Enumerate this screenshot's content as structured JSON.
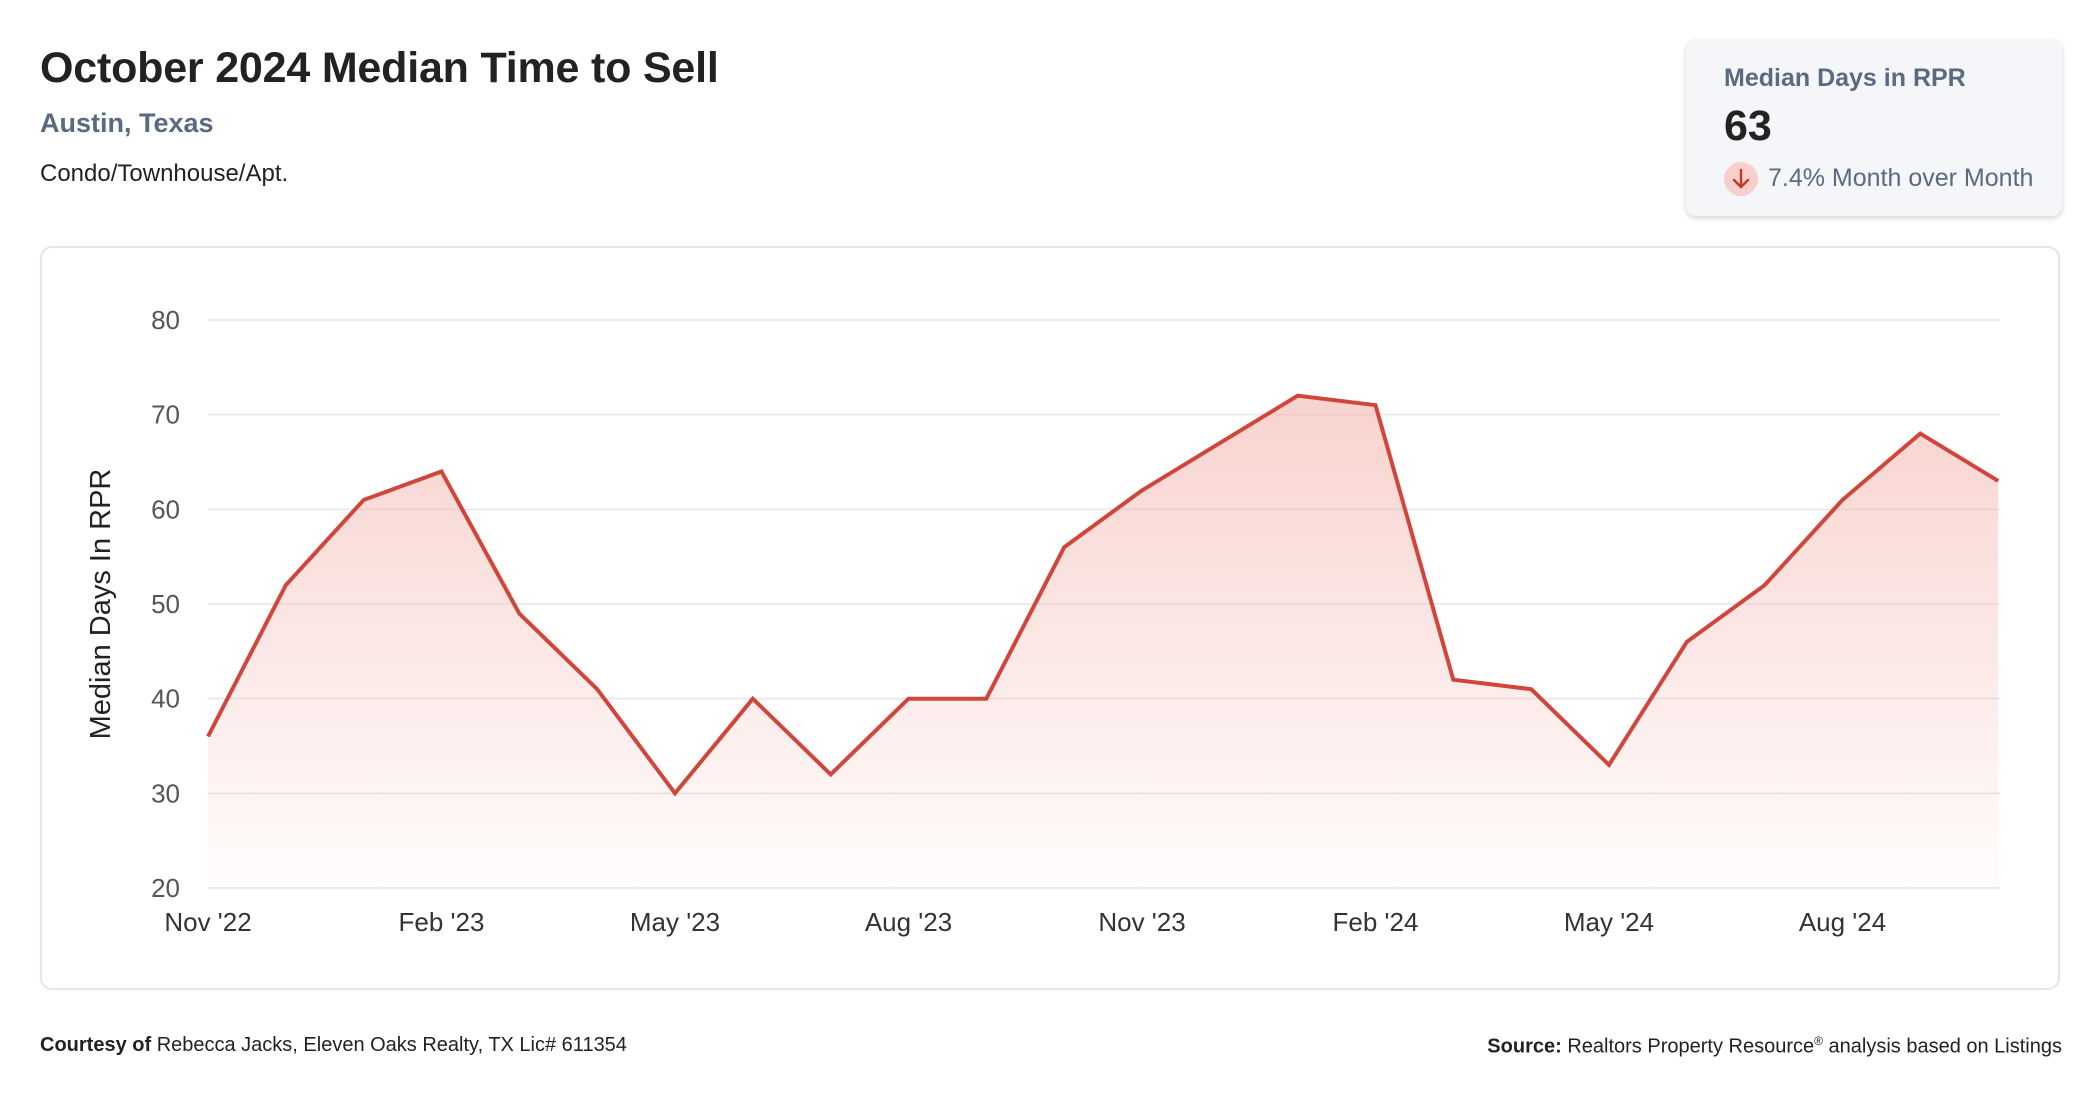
{
  "header": {
    "title": "October 2024 Median Time to Sell",
    "location": "Austin, Texas",
    "property_type": "Condo/Townhouse/Apt."
  },
  "stat_card": {
    "label": "Median Days in RPR",
    "value": "63",
    "change_text": "7.4% Month over Month",
    "change_icon": "arrow-down-icon",
    "change_color": "#d1463b"
  },
  "chart_data": {
    "type": "area",
    "title": "",
    "xlabel": "",
    "ylabel": "Median Days In RPR",
    "ylim": [
      20,
      80
    ],
    "yticks": [
      20,
      30,
      40,
      50,
      60,
      70,
      80
    ],
    "grid": true,
    "line_color": "#d1463b",
    "fill_color": "#f4b8b1",
    "x_tick_labels": [
      "Nov '22",
      "Feb '23",
      "May '23",
      "Aug '23",
      "Nov '23",
      "Feb '24",
      "May '24",
      "Aug '24"
    ],
    "x": [
      "Nov '22",
      "Dec '22",
      "Jan '23",
      "Feb '23",
      "Mar '23",
      "Apr '23",
      "May '23",
      "Jun '23",
      "Jul '23",
      "Aug '23",
      "Sep '23",
      "Oct '23",
      "Nov '23",
      "Dec '23",
      "Jan '24",
      "Feb '24",
      "Mar '24",
      "Apr '24",
      "May '24",
      "Jun '24",
      "Jul '24",
      "Aug '24",
      "Sep '24",
      "Oct '24"
    ],
    "values": [
      36,
      52,
      61,
      64,
      49,
      41,
      30,
      40,
      32,
      40,
      40,
      56,
      62,
      67,
      72,
      71,
      42,
      41,
      33,
      46,
      52,
      61,
      68,
      63
    ]
  },
  "footer": {
    "courtesy_label": "Courtesy of",
    "courtesy_text": "Rebecca Jacks, Eleven Oaks Realty, TX Lic# 611354",
    "source_label": "Source:",
    "source_text_1": "Realtors Property Resource",
    "source_reg": "®",
    "source_text_2": " analysis based on Listings"
  }
}
